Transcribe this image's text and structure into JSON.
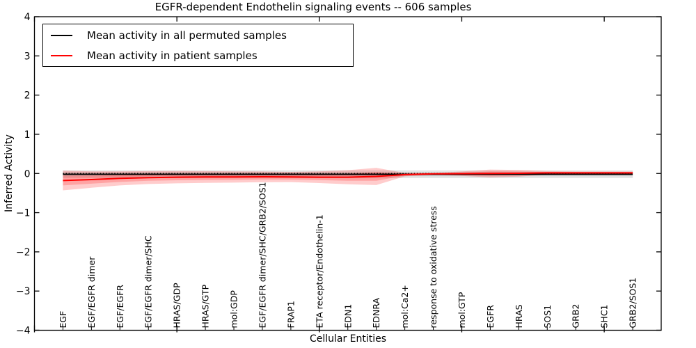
{
  "title": "EGFR-dependent Endothelin signaling events -- 606 samples",
  "legend": {
    "items": [
      {
        "label": "Mean activity in all permuted samples",
        "color": "#000000"
      },
      {
        "label": "Mean activity in patient samples",
        "color": "#ff0000"
      }
    ]
  },
  "axes": {
    "xlabel": "Cellular Entities",
    "ylabel": "Inferred Activity",
    "y_tick_labels": [
      "4",
      "3",
      "2",
      "1",
      "0",
      "−1",
      "−2",
      "−3",
      "−4"
    ],
    "y_tick_values": [
      4,
      3,
      2,
      1,
      0,
      -1,
      -2,
      -3,
      -4
    ],
    "x_major_tick_values": [
      0,
      5,
      10,
      15,
      20
    ],
    "xlim": [
      0,
      22
    ],
    "ylim": [
      -4,
      4
    ],
    "grid": false,
    "legend_position": "upper left"
  },
  "chart_data": {
    "type": "line",
    "title": "EGFR-dependent Endothelin signaling events -- 606 samples",
    "xlabel": "Cellular Entities",
    "ylabel": "Inferred Activity",
    "xlim": [
      0,
      22
    ],
    "ylim": [
      -4,
      4
    ],
    "band_note": "shaded bands show approx. ±1 and ±2 std around each mean; dotted black line marks zero",
    "categories": [
      "EGF",
      "EGF/EGFR dimer",
      "EGF/EGFR",
      "EGF/EGFR dimer/SHC",
      "HRAS/GDP",
      "HRAS/GTP",
      "mol:GDP",
      "EGF/EGFR dimer/SHC/GRB2/SOS1",
      "FRAP1",
      "ETA receptor/Endothelin-1",
      "EDN1",
      "EDNRA",
      "mol:Ca2+",
      "response to oxidative stress",
      "mol:GTP",
      "EGFR",
      "HRAS",
      "SOS1",
      "GRB2",
      "SHC1",
      "GRB2/SOS1"
    ],
    "x_positions": [
      1,
      2,
      3,
      4,
      5,
      6,
      7,
      8,
      9,
      10,
      11,
      12,
      13,
      14,
      15,
      16,
      17,
      18,
      19,
      20,
      21
    ],
    "series": [
      {
        "name": "Mean activity in all permuted samples",
        "color": "#000000",
        "line_width": 1.7,
        "band_fill": "rgba(0,0,0,0.10)",
        "values": [
          -0.02,
          -0.02,
          -0.02,
          -0.02,
          -0.02,
          -0.02,
          -0.02,
          -0.02,
          -0.02,
          -0.02,
          -0.02,
          -0.02,
          -0.02,
          -0.02,
          -0.02,
          -0.02,
          -0.02,
          -0.02,
          -0.02,
          -0.02,
          -0.02
        ],
        "sigma": [
          0.05,
          0.05,
          0.05,
          0.05,
          0.05,
          0.05,
          0.05,
          0.05,
          0.05,
          0.05,
          0.05,
          0.05,
          0.05,
          0.05,
          0.05,
          0.05,
          0.05,
          0.05,
          0.05,
          0.05,
          0.05
        ]
      },
      {
        "name": "Mean activity in patient samples",
        "color": "#ff0000",
        "line_width": 2,
        "band_fill": "rgba(255,0,0,0.20)",
        "values": [
          -0.18,
          -0.155,
          -0.125,
          -0.105,
          -0.095,
          -0.09,
          -0.09,
          -0.085,
          -0.09,
          -0.095,
          -0.095,
          -0.075,
          -0.03,
          -0.01,
          -0.005,
          0.0,
          0.005,
          0.015,
          0.015,
          0.015,
          0.015
        ],
        "sigma": [
          0.125,
          0.105,
          0.09,
          0.082,
          0.078,
          0.075,
          0.072,
          0.068,
          0.065,
          0.075,
          0.09,
          0.11,
          0.022,
          0.012,
          0.028,
          0.05,
          0.042,
          0.022,
          0.018,
          0.018,
          0.018
        ]
      }
    ],
    "zero_line": {
      "y": 0,
      "style": "dotted",
      "color": "#000000"
    }
  }
}
